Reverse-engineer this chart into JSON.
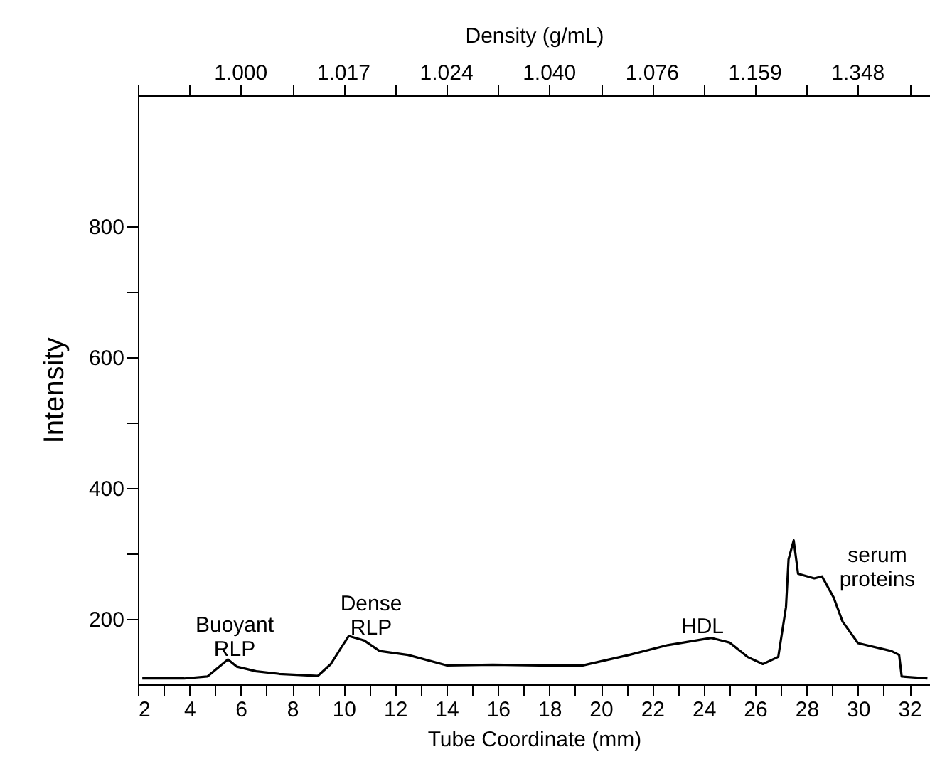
{
  "chart_data": {
    "type": "line",
    "xlabel": "Tube Coordinate (mm)",
    "ylabel": "Intensity",
    "x2label": "Density (g/mL)",
    "xlim": [
      2,
      32.8
    ],
    "ylim": [
      100,
      1000
    ],
    "xticks": [
      2,
      {
        "value": 3,
        "label": null
      },
      4,
      {
        "value": 5,
        "label": null
      },
      6,
      {
        "value": 7,
        "label": null
      },
      8,
      {
        "value": 9,
        "label": null
      },
      10,
      {
        "value": 11,
        "label": null
      },
      12,
      {
        "value": 13,
        "label": null
      },
      14,
      {
        "value": 15,
        "label": null
      },
      16,
      {
        "value": 17,
        "label": null
      },
      18,
      {
        "value": 19,
        "label": null
      },
      20,
      {
        "value": 21,
        "label": null
      },
      22,
      {
        "value": 23,
        "label": null
      },
      24,
      {
        "value": 25,
        "label": null
      },
      26,
      {
        "value": 27,
        "label": null
      },
      28,
      {
        "value": 29,
        "label": null
      },
      30,
      {
        "value": 31,
        "label": null
      },
      32
    ],
    "yticks": [
      200,
      {
        "value": 300,
        "label": null
      },
      400,
      {
        "value": 500,
        "label": null
      },
      600,
      {
        "value": 700,
        "label": null
      },
      800
    ],
    "grid": false,
    "marker": "none",
    "line_style": "solid",
    "series": [
      {
        "color": "#000000",
        "x": [
          2.17,
          3.8,
          4.7,
          5.5,
          5.85,
          6.6,
          7.5,
          9.0,
          9.5,
          9.9,
          10.2,
          10.8,
          11.4,
          12.5,
          14.0,
          15.8,
          17.6,
          19.3,
          21.1,
          22.6,
          24.3,
          25.0,
          25.7,
          26.3,
          26.9,
          27.2,
          27.3,
          27.5,
          27.67,
          28.3,
          28.6,
          29.05,
          29.4,
          30.0,
          31.3,
          31.6,
          31.7,
          32.7
        ],
        "values": [
          109,
          109,
          112,
          138,
          127,
          120,
          116,
          113,
          131,
          156,
          174,
          167,
          151,
          145,
          129,
          130,
          129,
          129,
          145,
          160,
          171,
          164,
          142,
          131,
          142,
          218,
          291,
          320,
          269,
          262,
          265,
          233,
          196,
          163,
          151,
          145,
          112,
          109
        ]
      }
    ],
    "annotations": [
      "1.000",
      "1.017",
      "1.024",
      "1.040",
      "1.076",
      "1.159",
      "1.348",
      "Buoyant\nRLP",
      "Dense\nRLP",
      "HDL",
      "serum\nproteins"
    ]
  }
}
